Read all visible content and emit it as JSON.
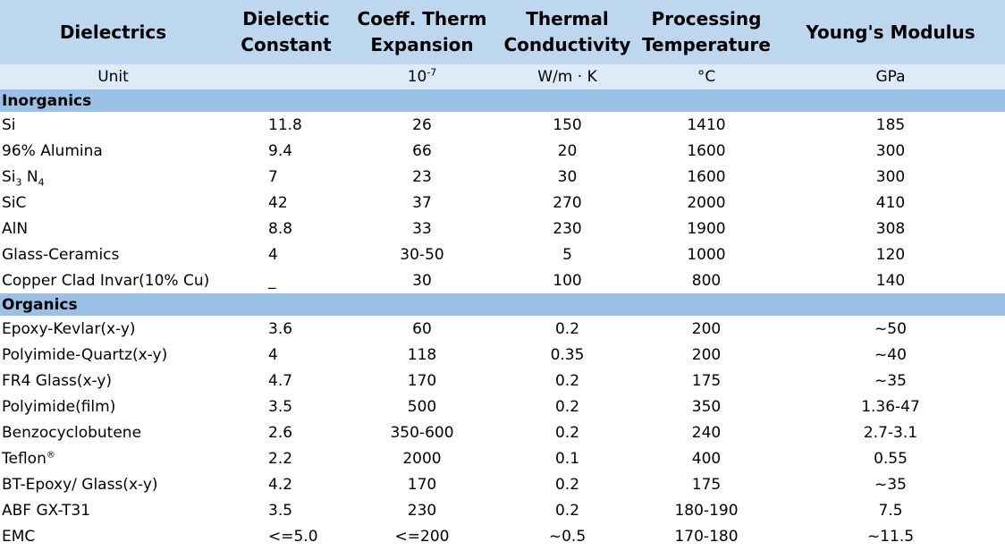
{
  "header": {
    "columns": [
      "Dielectrics",
      "Dielectic Constant",
      "Coeff. Therm Expansion",
      "Thermal Conductivity",
      "Processing Temperature",
      "Young's Modulus"
    ]
  },
  "units": {
    "label": "Unit",
    "dielectric_constant": "",
    "cte_base": "10",
    "cte_exp": "-7",
    "thermal_conductivity": "W/m · K",
    "processing_temperature": "°C",
    "youngs_modulus": "GPa"
  },
  "sections": [
    {
      "title": "Inorganics",
      "rows": [
        {
          "name": "Si",
          "dc": "11.8",
          "cte": "26",
          "tc": "150",
          "pt": "1410",
          "ym": "185"
        },
        {
          "name": "96% Alumina",
          "dc": "9.4",
          "cte": "66",
          "tc": "20",
          "pt": "1600",
          "ym": "300"
        },
        {
          "name": "Si",
          "name_sub1": "3",
          "name_mid": " N",
          "name_sub2": "4",
          "dc": "7",
          "cte": "23",
          "tc": "30",
          "pt": "1600",
          "ym": "300"
        },
        {
          "name": "SiC",
          "dc": "42",
          "cte": "37",
          "tc": "270",
          "pt": "2000",
          "ym": "410"
        },
        {
          "name": "AlN",
          "dc": "8.8",
          "cte": "33",
          "tc": "230",
          "pt": "1900",
          "ym": "308"
        },
        {
          "name": "Glass-Ceramics",
          "dc": "4",
          "cte": "30-50",
          "tc": "5",
          "pt": "1000",
          "ym": "120"
        },
        {
          "name": "Copper Clad Invar(10% Cu)",
          "dc": "_",
          "cte": "30",
          "tc": "100",
          "pt": "800",
          "ym": "140"
        }
      ]
    },
    {
      "title": "Organics",
      "rows": [
        {
          "name": "Epoxy-Kevlar(x-y)",
          "dc": "3.6",
          "cte": "60",
          "tc": "0.2",
          "pt": "200",
          "ym": "~50"
        },
        {
          "name": "Polyimide-Quartz(x-y)",
          "dc": "4",
          "cte": "118",
          "tc": "0.35",
          "pt": "200",
          "ym": "~40"
        },
        {
          "name": "FR4 Glass(x-y)",
          "dc": "4.7",
          "cte": "170",
          "tc": "0.2",
          "pt": "175",
          "ym": "~35"
        },
        {
          "name": "Polyimide(film)",
          "dc": "3.5",
          "cte": "500",
          "tc": "0.2",
          "pt": "350",
          "ym": "1.36-47"
        },
        {
          "name": "Benzocyclobutene",
          "dc": "2.6",
          "cte": "350-600",
          "tc": "0.2",
          "pt": "240",
          "ym": "2.7-3.1"
        },
        {
          "name": "Teflon",
          "name_sup": "®",
          "dc": "2.2",
          "cte": "2000",
          "tc": "0.1",
          "pt": "400",
          "ym": "0.55"
        },
        {
          "name": "BT-Epoxy/ Glass(x-y)",
          "dc": "4.2",
          "cte": "170",
          "tc": "0.2",
          "pt": "175",
          "ym": "~35"
        },
        {
          "name": "ABF GX-T31",
          "dc": "3.5",
          "cte": "230",
          "tc": "0.2",
          "pt": "180-190",
          "ym": "7.5"
        },
        {
          "name": "EMC",
          "dc": "<=5.0",
          "cte": "<=200",
          "tc": "~0.5",
          "pt": "170-180",
          "ym": "~11.5"
        }
      ]
    }
  ],
  "colors": {
    "header_bg": "#bdd7ee",
    "units_bg": "#ddebf7",
    "section_bg": "#9bc2e6"
  }
}
